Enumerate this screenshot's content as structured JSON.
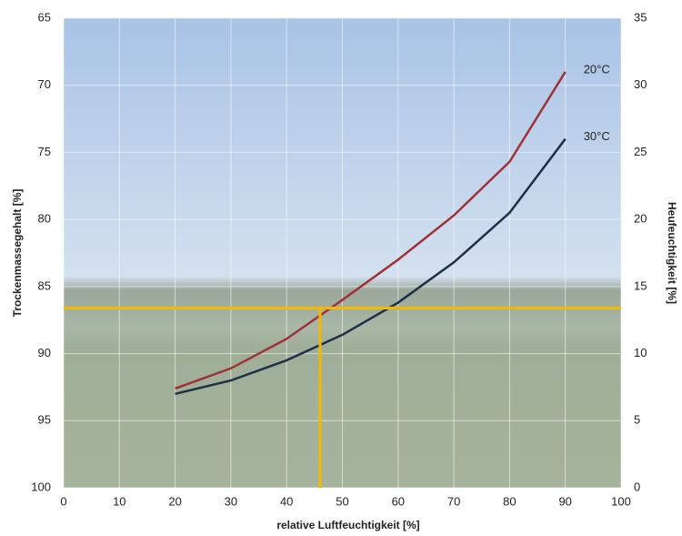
{
  "chart_data": {
    "type": "line",
    "x_label": "relative Luftfeuchtigkeit [%]",
    "y_label": "Trockenmassegehalt [%]",
    "y2_label": "Heufeuchtigkeit [%]",
    "x": [
      20,
      30,
      40,
      50,
      60,
      70,
      80,
      90
    ],
    "series": [
      {
        "name": "20°C",
        "color": "#a0303a",
        "axis": "y2",
        "values": [
          7.4,
          8.9,
          11.1,
          14.0,
          17.0,
          20.3,
          24.3,
          31.0
        ]
      },
      {
        "name": "30°C",
        "color": "#1f2f45",
        "axis": "y2",
        "values": [
          7.0,
          8.0,
          9.5,
          11.4,
          13.8,
          16.8,
          20.5,
          26.0
        ]
      }
    ],
    "xlim": [
      0,
      100
    ],
    "xticks": [
      0,
      10,
      20,
      30,
      40,
      50,
      60,
      70,
      80,
      90,
      100
    ],
    "ylim": [
      100,
      65
    ],
    "yticks": [
      100,
      95,
      90,
      85,
      80,
      75,
      70,
      65
    ],
    "y2lim": [
      0,
      35
    ],
    "y2ticks": [
      0,
      5,
      10,
      15,
      20,
      25,
      30,
      35
    ],
    "grid": true,
    "reference": {
      "x": 46,
      "y2": 13.4,
      "color": "#f5b800"
    }
  }
}
